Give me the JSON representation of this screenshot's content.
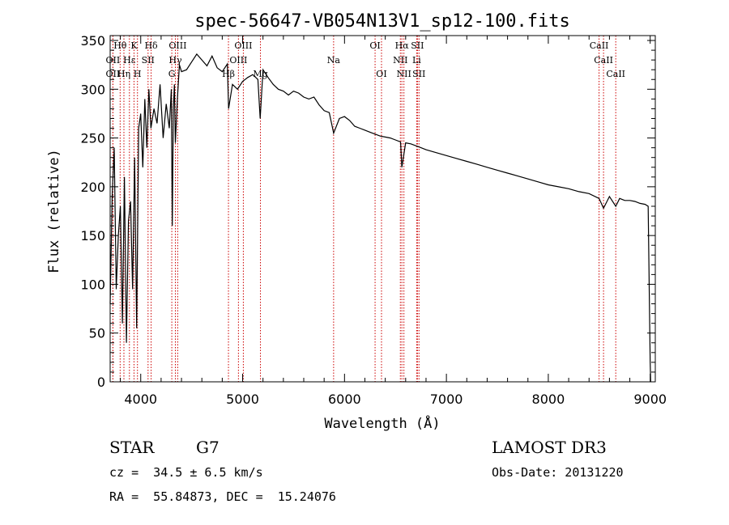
{
  "chart_data": {
    "type": "line",
    "title": "spec-56647-VB054N13V1_sp12-100.fits",
    "xlabel": "Wavelength (Å)",
    "ylabel": "Flux (relative)",
    "xlim": [
      3700,
      9050
    ],
    "ylim": [
      0,
      355
    ],
    "x_ticks": [
      4000,
      5000,
      6000,
      7000,
      8000,
      9000
    ],
    "y_ticks": [
      0,
      50,
      100,
      150,
      200,
      250,
      300,
      350
    ],
    "grid": false,
    "line_color": "#000000",
    "marker_color": "#cc0000",
    "series": [
      {
        "x": [
          3700,
          3720,
          3740,
          3760,
          3780,
          3800,
          3820,
          3840,
          3860,
          3880,
          3900,
          3920,
          3940,
          3960,
          3980,
          4000,
          4020,
          4040,
          4060,
          4080,
          4100,
          4130,
          4160,
          4190,
          4220,
          4250,
          4280,
          4300,
          4310,
          4320,
          4330,
          4340,
          4360,
          4380,
          4400,
          4450,
          4500,
          4550,
          4600,
          4650,
          4700,
          4750,
          4800,
          4850,
          4862,
          4900,
          4950,
          5000,
          5050,
          5100,
          5150,
          5172,
          5200,
          5250,
          5300,
          5350,
          5400,
          5450,
          5500,
          5550,
          5600,
          5650,
          5700,
          5750,
          5800,
          5850,
          5893,
          5950,
          6000,
          6050,
          6100,
          6150,
          6200,
          6250,
          6300,
          6350,
          6400,
          6450,
          6500,
          6550,
          6563,
          6600,
          6650,
          6700,
          6750,
          6800,
          6900,
          7000,
          7100,
          7200,
          7300,
          7400,
          7500,
          7600,
          7700,
          7800,
          7900,
          8000,
          8100,
          8200,
          8300,
          8400,
          8498,
          8542,
          8600,
          8662,
          8700,
          8750,
          8800,
          8850,
          8900,
          8950,
          8980,
          9000,
          9005
        ],
        "y": [
          80,
          190,
          240,
          95,
          150,
          180,
          60,
          210,
          40,
          165,
          185,
          95,
          230,
          55,
          260,
          275,
          220,
          290,
          240,
          300,
          260,
          280,
          265,
          305,
          250,
          285,
          260,
          300,
          160,
          280,
          305,
          245,
          290,
          325,
          318,
          320,
          328,
          336,
          330,
          324,
          334,
          322,
          318,
          326,
          280,
          305,
          300,
          308,
          312,
          315,
          310,
          270,
          320,
          312,
          305,
          300,
          298,
          294,
          298,
          296,
          292,
          290,
          292,
          284,
          278,
          276,
          255,
          270,
          272,
          268,
          262,
          260,
          258,
          256,
          254,
          252,
          251,
          250,
          248,
          246,
          220,
          245,
          244,
          242,
          240,
          238,
          235,
          232,
          229,
          226,
          223,
          220,
          217,
          214,
          211,
          208,
          205,
          202,
          200,
          198,
          195,
          193,
          188,
          178,
          190,
          180,
          188,
          186,
          186,
          185,
          183,
          182,
          180,
          20,
          0
        ]
      }
    ],
    "markers": [
      {
        "name": "Hθ",
        "x": 3798,
        "row": 1
      },
      {
        "name": "OII",
        "x": 3727,
        "row": 2
      },
      {
        "name": "OII",
        "x": 3727,
        "row": 3
      },
      {
        "name": "Hη",
        "x": 3835,
        "row": 3
      },
      {
        "name": "K",
        "x": 3934,
        "row": 1
      },
      {
        "name": "Hε",
        "x": 3889,
        "row": 2
      },
      {
        "name": "H",
        "x": 3968,
        "row": 3
      },
      {
        "name": "SII",
        "x": 4072,
        "row": 2
      },
      {
        "name": "Hδ",
        "x": 4102,
        "row": 1
      },
      {
        "name": "OIII",
        "x": 4363,
        "row": 1
      },
      {
        "name": "Hγ",
        "x": 4340,
        "row": 2
      },
      {
        "name": "G",
        "x": 4305,
        "row": 3
      },
      {
        "name": "Hβ",
        "x": 4861,
        "row": 3
      },
      {
        "name": "OIII",
        "x": 5007,
        "row": 1
      },
      {
        "name": "OIII",
        "x": 4959,
        "row": 2
      },
      {
        "name": "Mg",
        "x": 5175,
        "row": 3
      },
      {
        "name": "Na",
        "x": 5893,
        "row": 2
      },
      {
        "name": "OI",
        "x": 6300,
        "row": 1
      },
      {
        "name": "OI",
        "x": 6363,
        "row": 3
      },
      {
        "name": "Hα",
        "x": 6563,
        "row": 1
      },
      {
        "name": "NII",
        "x": 6548,
        "row": 2
      },
      {
        "name": "NII",
        "x": 6583,
        "row": 3
      },
      {
        "name": "SII",
        "x": 6716,
        "row": 1
      },
      {
        "name": "Li",
        "x": 6708,
        "row": 2
      },
      {
        "name": "SII",
        "x": 6731,
        "row": 3
      },
      {
        "name": "CaII",
        "x": 8498,
        "row": 1
      },
      {
        "name": "CaII",
        "x": 8542,
        "row": 2
      },
      {
        "name": "CaII",
        "x": 8662,
        "row": 3
      }
    ]
  },
  "info": {
    "obj_class": "STAR",
    "subclass": "G7",
    "survey": "LAMOST DR3",
    "redshift": "cz =  34.5 ± 6.5 km/s",
    "obs_date": "Obs-Date: 20131220",
    "coords": "RA =  55.84873, DEC =  15.24076"
  }
}
